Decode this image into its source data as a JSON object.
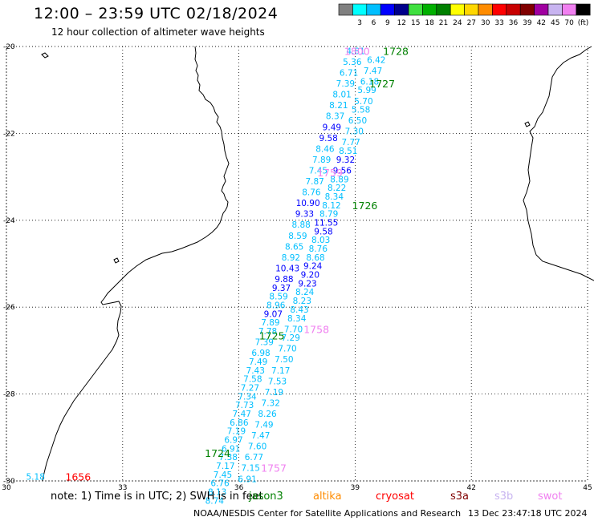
{
  "header": {
    "title": "12:00 – 23:59 UTC 02/18/2024",
    "subtitle": "12 hour collection of altimeter wave heights"
  },
  "legend": {
    "unit": "(ft)",
    "swatches": [
      {
        "color": "#808080",
        "label": ""
      },
      {
        "color": "#00ffff",
        "label": "3"
      },
      {
        "color": "#00bfff",
        "label": "6"
      },
      {
        "color": "#0000ff",
        "label": "9"
      },
      {
        "color": "#00008b",
        "label": "12"
      },
      {
        "color": "#40e040",
        "label": "15"
      },
      {
        "color": "#00b000",
        "label": "18"
      },
      {
        "color": "#008000",
        "label": "21"
      },
      {
        "color": "#ffff00",
        "label": "24"
      },
      {
        "color": "#ffd700",
        "label": "27"
      },
      {
        "color": "#ff8c00",
        "label": "30"
      },
      {
        "color": "#ff0000",
        "label": "33"
      },
      {
        "color": "#c80000",
        "label": "36"
      },
      {
        "color": "#800000",
        "label": "39"
      },
      {
        "color": "#a000a0",
        "label": "42"
      },
      {
        "color": "#c8b4f0",
        "label": "45"
      },
      {
        "color": "#f080f0",
        "label": "70"
      },
      {
        "color": "#000000",
        "label": ""
      }
    ]
  },
  "map": {
    "lat_labels": [
      "-20",
      "-22",
      "-24",
      "-26",
      "-28",
      "-30"
    ],
    "lon_labels": [
      "30",
      "33",
      "36",
      "39",
      "42",
      "45"
    ],
    "lat_range": [
      -30,
      -20
    ],
    "lon_range": [
      30,
      45
    ],
    "coastline_color": "#000000",
    "grid": "dotted",
    "times": [
      {
        "text": "1728",
        "lon": 40.05,
        "lat": -20.1,
        "color": "#008000"
      },
      {
        "text": "1727",
        "lon": 39.7,
        "lat": -20.85,
        "color": "#008000"
      },
      {
        "text": "1800",
        "lon": 39.05,
        "lat": -20.1,
        "color": "#f080f0"
      },
      {
        "text": "1759",
        "lon": 38.35,
        "lat": -22.9,
        "color": "#f080f0"
      },
      {
        "text": "1726",
        "lon": 39.25,
        "lat": -23.65,
        "color": "#008000"
      },
      {
        "text": "1758",
        "lon": 38.0,
        "lat": -26.5,
        "color": "#f080f0"
      },
      {
        "text": "1725",
        "lon": 36.85,
        "lat": -26.65,
        "color": "#008000"
      },
      {
        "text": "1724",
        "lon": 35.45,
        "lat": -29.35,
        "color": "#008000"
      },
      {
        "text": "1757",
        "lon": 36.9,
        "lat": -29.7,
        "color": "#f080f0"
      },
      {
        "text": "1656",
        "lon": 31.85,
        "lat": -29.9,
        "color": "#ff0000"
      }
    ],
    "swh_west": [
      {
        "t": "4.81",
        "lat": -20.1,
        "color": "#00bfff"
      },
      {
        "t": "5.36",
        "lat": -20.35,
        "color": "#00bfff"
      },
      {
        "t": "6.71",
        "lat": -20.6,
        "color": "#00bfff"
      },
      {
        "t": "7.39",
        "lat": -20.85,
        "color": "#00bfff"
      },
      {
        "t": "8.01",
        "lat": -21.1,
        "color": "#00bfff"
      },
      {
        "t": "8.21",
        "lat": -21.35,
        "color": "#00bfff"
      },
      {
        "t": "8.37",
        "lat": -21.6,
        "color": "#00bfff"
      },
      {
        "t": "9.49",
        "lat": -21.85,
        "color": "#0000ff"
      },
      {
        "t": "9.58",
        "lat": -22.1,
        "color": "#0000ff"
      },
      {
        "t": "8.46",
        "lat": -22.35,
        "color": "#00bfff"
      },
      {
        "t": "7.89",
        "lat": -22.6,
        "color": "#00bfff"
      },
      {
        "t": "7.45",
        "lat": -22.85,
        "color": "#00bfff"
      },
      {
        "t": "7.87",
        "lat": -23.1,
        "color": "#00bfff"
      },
      {
        "t": "8.76",
        "lat": -23.35,
        "color": "#00bfff"
      },
      {
        "t": "10.90",
        "lat": -23.6,
        "color": "#0000ff"
      },
      {
        "t": "9.33",
        "lat": -23.85,
        "color": "#0000ff"
      },
      {
        "t": "8.88",
        "lat": -24.1,
        "color": "#00bfff"
      },
      {
        "t": "8.59",
        "lat": -24.35,
        "color": "#00bfff"
      },
      {
        "t": "8.65",
        "lat": -24.6,
        "color": "#00bfff"
      },
      {
        "t": "8.92",
        "lat": -24.85,
        "color": "#00bfff"
      },
      {
        "t": "10.43",
        "lat": -25.1,
        "color": "#0000ff"
      },
      {
        "t": "9.88",
        "lat": -25.35,
        "color": "#0000ff"
      },
      {
        "t": "9.37",
        "lat": -25.55,
        "color": "#0000ff"
      },
      {
        "t": "8.59",
        "lat": -25.75,
        "color": "#00bfff"
      },
      {
        "t": "8.96",
        "lat": -25.95,
        "color": "#00bfff"
      },
      {
        "t": "9.07",
        "lat": -26.15,
        "color": "#0000ff"
      },
      {
        "t": "7.89",
        "lat": -26.35,
        "color": "#00bfff"
      },
      {
        "t": "7.78",
        "lat": -26.55,
        "color": "#00bfff"
      },
      {
        "t": "7.39",
        "lat": -26.8,
        "color": "#00bfff"
      },
      {
        "t": "6.98",
        "lat": -27.05,
        "color": "#00bfff"
      },
      {
        "t": "7.49",
        "lat": -27.25,
        "color": "#00bfff"
      },
      {
        "t": "7.43",
        "lat": -27.45,
        "color": "#00bfff"
      },
      {
        "t": "7.58",
        "lat": -27.65,
        "color": "#00bfff"
      },
      {
        "t": "7.27",
        "lat": -27.85,
        "color": "#00bfff"
      },
      {
        "t": "7.34",
        "lat": -28.05,
        "color": "#00bfff"
      },
      {
        "t": "7.73",
        "lat": -28.25,
        "color": "#00bfff"
      },
      {
        "t": "7.47",
        "lat": -28.45,
        "color": "#00bfff"
      },
      {
        "t": "6.86",
        "lat": -28.65,
        "color": "#00bfff"
      },
      {
        "t": "7.19",
        "lat": -28.85,
        "color": "#00bfff"
      },
      {
        "t": "6.97",
        "lat": -29.05,
        "color": "#00bfff"
      },
      {
        "t": "6.91",
        "lat": -29.25,
        "color": "#00bfff"
      },
      {
        "t": "7.38",
        "lat": -29.45,
        "color": "#00bfff"
      },
      {
        "t": "7.17",
        "lat": -29.65,
        "color": "#00bfff"
      },
      {
        "t": "7.45",
        "lat": -29.85,
        "color": "#00bfff"
      },
      {
        "t": "6.76",
        "lat": -30.05,
        "color": "#00bfff"
      },
      {
        "t": "8.13",
        "lat": -30.25,
        "color": "#00bfff"
      },
      {
        "t": "8.74",
        "lat": -30.45,
        "color": "#00bfff"
      }
    ],
    "swh_east": [
      {
        "t": "6.42",
        "lat": -20.3,
        "color": "#00bfff"
      },
      {
        "t": "7.47",
        "lat": -20.55,
        "color": "#00bfff"
      },
      {
        "t": "6.18",
        "lat": -20.8,
        "color": "#00bfff"
      },
      {
        "t": "5.99",
        "lat": -21.0,
        "color": "#00bfff"
      },
      {
        "t": "5.70",
        "lat": -21.25,
        "color": "#00bfff"
      },
      {
        "t": "5.58",
        "lat": -21.45,
        "color": "#00bfff"
      },
      {
        "t": "6.50",
        "lat": -21.7,
        "color": "#00bfff"
      },
      {
        "t": "7.30",
        "lat": -21.95,
        "color": "#00bfff"
      },
      {
        "t": "7.77",
        "lat": -22.2,
        "color": "#00bfff"
      },
      {
        "t": "8.51",
        "lat": -22.4,
        "color": "#00bfff"
      },
      {
        "t": "9.32",
        "lat": -22.6,
        "color": "#0000ff"
      },
      {
        "t": "9.56",
        "lat": -22.85,
        "color": "#0000ff"
      },
      {
        "t": "8.89",
        "lat": -23.05,
        "color": "#00bfff"
      },
      {
        "t": "8.22",
        "lat": -23.25,
        "color": "#00bfff"
      },
      {
        "t": "8.34",
        "lat": -23.45,
        "color": "#00bfff"
      },
      {
        "t": "8.12",
        "lat": -23.65,
        "color": "#00bfff"
      },
      {
        "t": "8.79",
        "lat": -23.85,
        "color": "#00bfff"
      },
      {
        "t": "11.55",
        "lat": -24.05,
        "color": "#0000ff"
      },
      {
        "t": "9.58",
        "lat": -24.25,
        "color": "#0000ff"
      },
      {
        "t": "8.03",
        "lat": -24.45,
        "color": "#00bfff"
      },
      {
        "t": "8.76",
        "lat": -24.65,
        "color": "#00bfff"
      },
      {
        "t": "8.68",
        "lat": -24.85,
        "color": "#00bfff"
      },
      {
        "t": "9.24",
        "lat": -25.05,
        "color": "#0000ff"
      },
      {
        "t": "9.20",
        "lat": -25.25,
        "color": "#0000ff"
      },
      {
        "t": "9.23",
        "lat": -25.45,
        "color": "#0000ff"
      },
      {
        "t": "8.24",
        "lat": -25.65,
        "color": "#00bfff"
      },
      {
        "t": "8.23",
        "lat": -25.85,
        "color": "#00bfff"
      },
      {
        "t": "8.43",
        "lat": -26.05,
        "color": "#00bfff"
      },
      {
        "t": "8.34",
        "lat": -26.25,
        "color": "#00bfff"
      },
      {
        "t": "7.70",
        "lat": -26.5,
        "color": "#00bfff"
      },
      {
        "t": "7.29",
        "lat": -26.7,
        "color": "#00bfff"
      },
      {
        "t": "7.70",
        "lat": -26.95,
        "color": "#00bfff"
      },
      {
        "t": "7.50",
        "lat": -27.2,
        "color": "#00bfff"
      },
      {
        "t": "7.17",
        "lat": -27.45,
        "color": "#00bfff"
      },
      {
        "t": "7.53",
        "lat": -27.7,
        "color": "#00bfff"
      },
      {
        "t": "7.19",
        "lat": -27.95,
        "color": "#00bfff"
      },
      {
        "t": "7.32",
        "lat": -28.2,
        "color": "#00bfff"
      },
      {
        "t": "8.26",
        "lat": -28.45,
        "color": "#00bfff"
      },
      {
        "t": "7.49",
        "lat": -28.7,
        "color": "#00bfff"
      },
      {
        "t": "7.47",
        "lat": -28.95,
        "color": "#00bfff"
      },
      {
        "t": "7.60",
        "lat": -29.2,
        "color": "#00bfff"
      },
      {
        "t": "6.77",
        "lat": -29.45,
        "color": "#00bfff"
      },
      {
        "t": "7.15",
        "lat": -29.7,
        "color": "#00bfff"
      },
      {
        "t": "6.91",
        "lat": -29.95,
        "color": "#00bfff"
      }
    ],
    "swh_coast": [
      {
        "t": "5.18",
        "lon": 30.75,
        "lat": -29.9,
        "color": "#00bfff"
      }
    ]
  },
  "footer": {
    "note_prefix": "note: 1) Time is in UTC; 2) SWH is in feet",
    "satellites": [
      {
        "name": "jason3",
        "color": "#008000"
      },
      {
        "name": "altika",
        "color": "#ff8c00"
      },
      {
        "name": "cryosat",
        "color": "#ff0000"
      },
      {
        "name": "s3a",
        "color": "#800000"
      },
      {
        "name": "s3b",
        "color": "#c8b4f0"
      },
      {
        "name": "swot",
        "color": "#f080f0"
      }
    ],
    "credit": "NOAA/NESDIS Center for Satellite Applications and Research",
    "generated": "13 Dec 23:47:18 UTC 2024"
  }
}
